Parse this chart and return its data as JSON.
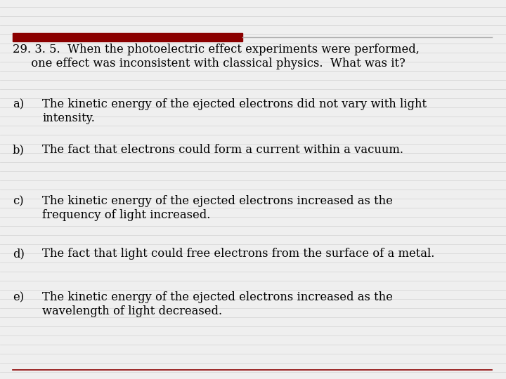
{
  "bg_color": "#efefef",
  "text_color": "#000000",
  "red_bar_color": "#8B0000",
  "line_color": "#b0b0b0",
  "bottom_line_color": "#8B0000",
  "title_line1": "29. 3. 5.  When the photoelectric effect experiments were performed,",
  "title_line2": "     one effect was inconsistent with classical physics.  What was it?",
  "options": [
    {
      "label": "a)",
      "line1": "The kinetic energy of the ejected electrons did not vary with light",
      "line2": "intensity."
    },
    {
      "label": "b)",
      "line1": "The fact that electrons could form a current within a vacuum.",
      "line2": null
    },
    {
      "label": "c)",
      "line1": "The kinetic energy of the ejected electrons increased as the",
      "line2": "frequency of light increased."
    },
    {
      "label": "d)",
      "line1": "The fact that light could free electrons from the surface of a metal.",
      "line2": null
    },
    {
      "label": "e)",
      "line1": "The kinetic energy of the ejected electrons increased as the",
      "line2": "wavelength of light decreased."
    }
  ],
  "font_size": 11.8,
  "font_family": "DejaVu Serif"
}
